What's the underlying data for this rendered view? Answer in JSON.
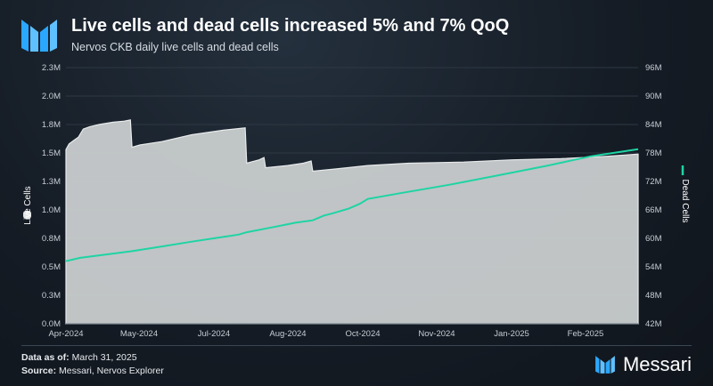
{
  "header": {
    "title": "Live cells and dead cells increased 5% and 7% QoQ",
    "subtitle": "Nervos CKB daily live cells and dead cells"
  },
  "footer": {
    "data_as_of_label": "Data as of:",
    "data_as_of_value": "March 31, 2025",
    "source_label": "Source:",
    "source_value": "Messari, Nervos Explorer",
    "brand": "Messari"
  },
  "colors": {
    "live_fill": "#c9cdcf",
    "dead_line": "#1ed4a4",
    "accent_logo": "#2aa7ff"
  },
  "chart_data": {
    "type": "area",
    "title": "",
    "x_ticks": [
      "Apr-2024",
      "May-2024",
      "Jul-2024",
      "Aug-2024",
      "Oct-2024",
      "Nov-2024",
      "Jan-2025",
      "Feb-2025"
    ],
    "x_range": [
      "2024-04-01",
      "2025-03-31"
    ],
    "y_left": {
      "label": "Live Cells",
      "ticks": [
        "0.0M",
        "0.3M",
        "0.5M",
        "0.8M",
        "1.0M",
        "1.3M",
        "1.5M",
        "1.8M",
        "2.0M",
        "2.3M"
      ],
      "range": [
        0,
        2.25
      ]
    },
    "y_right": {
      "label": "Dead Cells",
      "ticks": [
        "42M",
        "48M",
        "54M",
        "60M",
        "66M",
        "72M",
        "78M",
        "84M",
        "90M",
        "96M"
      ],
      "range": [
        42,
        96
      ]
    },
    "grid": true,
    "series": [
      {
        "name": "Live Cells",
        "axis": "left",
        "kind": "area",
        "unit": "M",
        "points": [
          [
            "2024-04-01",
            1.53
          ],
          [
            "2024-04-03",
            1.58
          ],
          [
            "2024-04-06",
            1.61
          ],
          [
            "2024-04-09",
            1.64
          ],
          [
            "2024-04-12",
            1.71
          ],
          [
            "2024-04-16",
            1.73
          ],
          [
            "2024-04-22",
            1.75
          ],
          [
            "2024-05-01",
            1.77
          ],
          [
            "2024-05-08",
            1.78
          ],
          [
            "2024-05-12",
            1.79
          ],
          [
            "2024-05-13",
            1.55
          ],
          [
            "2024-05-18",
            1.57
          ],
          [
            "2024-06-01",
            1.6
          ],
          [
            "2024-06-20",
            1.66
          ],
          [
            "2024-07-10",
            1.7
          ],
          [
            "2024-07-24",
            1.72
          ],
          [
            "2024-07-25",
            1.41
          ],
          [
            "2024-08-02",
            1.44
          ],
          [
            "2024-08-05",
            1.46
          ],
          [
            "2024-08-06",
            1.37
          ],
          [
            "2024-08-20",
            1.39
          ],
          [
            "2024-08-30",
            1.41
          ],
          [
            "2024-09-04",
            1.43
          ],
          [
            "2024-09-05",
            1.34
          ],
          [
            "2024-09-20",
            1.36
          ],
          [
            "2024-10-10",
            1.39
          ],
          [
            "2024-11-05",
            1.41
          ],
          [
            "2024-12-10",
            1.42
          ],
          [
            "2025-01-10",
            1.44
          ],
          [
            "2025-02-10",
            1.45
          ],
          [
            "2025-03-10",
            1.47
          ],
          [
            "2025-03-31",
            1.49
          ]
        ]
      },
      {
        "name": "Dead Cells",
        "axis": "right",
        "kind": "line",
        "unit": "M",
        "points": [
          [
            "2024-04-01",
            55.2
          ],
          [
            "2024-04-10",
            55.9
          ],
          [
            "2024-05-01",
            56.8
          ],
          [
            "2024-05-13",
            57.3
          ],
          [
            "2024-06-01",
            58.3
          ],
          [
            "2024-06-20",
            59.3
          ],
          [
            "2024-07-10",
            60.3
          ],
          [
            "2024-07-20",
            60.8
          ],
          [
            "2024-07-25",
            61.3
          ],
          [
            "2024-08-10",
            62.3
          ],
          [
            "2024-08-25",
            63.3
          ],
          [
            "2024-09-05",
            63.8
          ],
          [
            "2024-09-12",
            64.8
          ],
          [
            "2024-09-18",
            65.3
          ],
          [
            "2024-09-28",
            66.3
          ],
          [
            "2024-10-05",
            67.3
          ],
          [
            "2024-10-10",
            68.3
          ],
          [
            "2024-11-01",
            69.6
          ],
          [
            "2024-12-01",
            71.3
          ],
          [
            "2025-01-01",
            73.3
          ],
          [
            "2025-02-01",
            75.3
          ],
          [
            "2025-03-01",
            77.3
          ],
          [
            "2025-03-31",
            78.8
          ]
        ]
      }
    ]
  }
}
